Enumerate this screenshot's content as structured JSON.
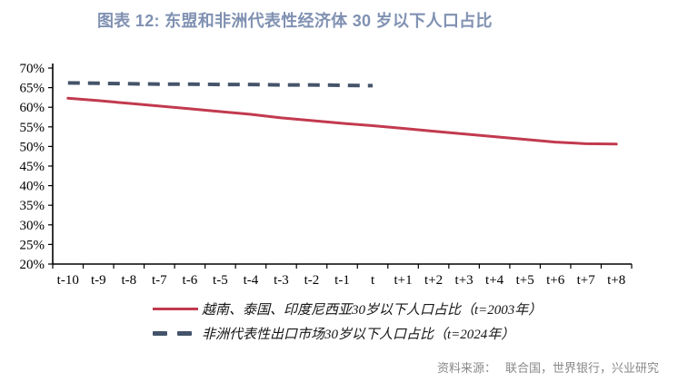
{
  "title": "图表 12: 东盟和非洲代表性经济体 30 岁以下人口占比",
  "colors": {
    "title": "#8091B2",
    "asean_line": "#C23A4E",
    "africa_line": "#44546A",
    "axis": "#000000",
    "source_text": "#898989"
  },
  "legend": {
    "items": [
      {
        "label": "越南、泰国、印度尼西亚30岁以下人口占比（t=2003年）",
        "style": "solid",
        "color": "#C23A4E"
      },
      {
        "label": "非洲代表性出口市场30岁以下人口占比（t=2024年）",
        "style": "dashed",
        "color": "#44546A"
      }
    ]
  },
  "source_note": {
    "label": "资料来源：",
    "value": "联合国，世界银行，兴业研究"
  },
  "chart_data": {
    "type": "line",
    "title": "图表 12: 东盟和非洲代表性经济体 30 岁以下人口占比",
    "xlabel": "",
    "ylabel": "",
    "categories": [
      "t-10",
      "t-9",
      "t-8",
      "t-7",
      "t-6",
      "t-5",
      "t-4",
      "t-3",
      "t-2",
      "t-1",
      "t",
      "t+1",
      "t+2",
      "t+3",
      "t+4",
      "t+5",
      "t+6",
      "t+7",
      "t+8"
    ],
    "series": [
      {
        "name": "越南、泰国、印度尼西亚30岁以下人口占比（t=2003年）",
        "style": "solid",
        "color": "#C23A4E",
        "values": [
          62.3,
          61.7,
          61.0,
          60.3,
          59.6,
          58.9,
          58.2,
          57.3,
          56.6,
          55.9,
          55.3,
          54.6,
          53.9,
          53.2,
          52.5,
          51.8,
          51.1,
          50.7,
          50.6
        ]
      },
      {
        "name": "非洲代表性出口市场30岁以下人口占比（t=2024年）",
        "style": "dashed",
        "color": "#44546A",
        "values": [
          66.2,
          66.1,
          66.0,
          65.9,
          65.9,
          65.8,
          65.8,
          65.7,
          65.7,
          65.6,
          65.5,
          null,
          null,
          null,
          null,
          null,
          null,
          null,
          null
        ]
      }
    ],
    "ylim": [
      20,
      70
    ],
    "y_tick_step": 5,
    "y_tick_labels": [
      "20%",
      "25%",
      "30%",
      "35%",
      "40%",
      "45%",
      "50%",
      "55%",
      "60%",
      "65%",
      "70%"
    ],
    "grid": false,
    "legend_position": "bottom"
  }
}
